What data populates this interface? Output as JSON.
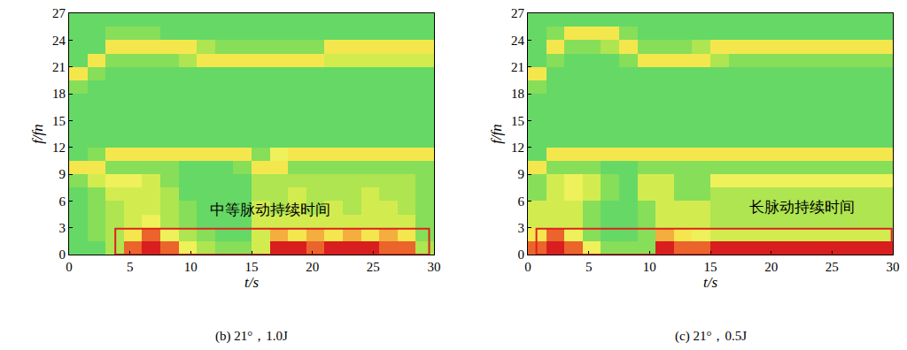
{
  "chart_data": [
    {
      "type": "heatmap",
      "title": "(b) 21°，1.0J",
      "x_label": "t/s",
      "y_label": "f/fn",
      "xlim": [
        0,
        30
      ],
      "ylim": [
        0,
        27
      ],
      "xticks": [
        0,
        5,
        10,
        15,
        20,
        25,
        30
      ],
      "yticks": [
        0,
        3,
        6,
        9,
        12,
        15,
        18,
        21,
        24,
        27
      ],
      "zlim": [
        0,
        9
      ],
      "x": [
        0.75,
        2.25,
        3.75,
        5.25,
        6.75,
        8.25,
        9.75,
        11.25,
        12.75,
        14.25,
        15.75,
        17.25,
        18.75,
        20.25,
        21.75,
        23.25,
        24.75,
        26.25,
        27.75,
        29.25
      ],
      "y": [
        0.75,
        2.25,
        3.75,
        5.25,
        6.75,
        8.25,
        9.75,
        11.25,
        12.75,
        14.25,
        15.75,
        17.25,
        18.75,
        20.25,
        21.75,
        23.25,
        24.75,
        26.25
      ],
      "z": [
        [
          1,
          1,
          3,
          8,
          9,
          8,
          5,
          3,
          2,
          2,
          4,
          9,
          9,
          8,
          9,
          9,
          9,
          8,
          8,
          3
        ],
        [
          1,
          2,
          3,
          6,
          8,
          5,
          3,
          2,
          1,
          1,
          4,
          7,
          6,
          7,
          6,
          7,
          6,
          7,
          6,
          2
        ],
        [
          1,
          2,
          3,
          4,
          5,
          3,
          2,
          1,
          1,
          1,
          4,
          4,
          4,
          4,
          4,
          4,
          4,
          4,
          4,
          2
        ],
        [
          1,
          2,
          3,
          4,
          4,
          3,
          2,
          1,
          1,
          1,
          4,
          3,
          4,
          3,
          4,
          3,
          4,
          4,
          3,
          2
        ],
        [
          1,
          2,
          4,
          4,
          4,
          3,
          1,
          1,
          1,
          1,
          3,
          3,
          4,
          3,
          3,
          3,
          4,
          3,
          3,
          2
        ],
        [
          2,
          4,
          5,
          5,
          4,
          2,
          1,
          1,
          1,
          1,
          3,
          3,
          3,
          3,
          3,
          3,
          3,
          3,
          3,
          2
        ],
        [
          6,
          6,
          2,
          2,
          2,
          2,
          1,
          1,
          1,
          2,
          6,
          6,
          2,
          2,
          2,
          2,
          2,
          2,
          2,
          2
        ],
        [
          1,
          2,
          6,
          6,
          6,
          6,
          6,
          6,
          6,
          6,
          2,
          5,
          6,
          6,
          6,
          6,
          6,
          6,
          6,
          6
        ],
        [
          1,
          1,
          1,
          1,
          1,
          1,
          1,
          1,
          1,
          1,
          1,
          1,
          1,
          1,
          1,
          1,
          1,
          1,
          1,
          1
        ],
        [
          1,
          1,
          1,
          1,
          1,
          1,
          1,
          1,
          1,
          1,
          1,
          1,
          1,
          1,
          1,
          1,
          1,
          1,
          1,
          1
        ],
        [
          1,
          1,
          1,
          1,
          1,
          1,
          1,
          1,
          1,
          1,
          1,
          1,
          1,
          1,
          1,
          1,
          1,
          1,
          1,
          1
        ],
        [
          1,
          1,
          1,
          1,
          1,
          1,
          1,
          1,
          1,
          1,
          1,
          1,
          1,
          1,
          1,
          1,
          1,
          1,
          1,
          1
        ],
        [
          2,
          1,
          1,
          1,
          1,
          1,
          1,
          1,
          1,
          1,
          1,
          1,
          1,
          1,
          1,
          1,
          1,
          1,
          1,
          1
        ],
        [
          6,
          2,
          1,
          1,
          1,
          1,
          1,
          1,
          1,
          1,
          1,
          1,
          1,
          1,
          1,
          1,
          1,
          1,
          1,
          1
        ],
        [
          1,
          6,
          2,
          2,
          2,
          2,
          3,
          6,
          6,
          6,
          6,
          6,
          6,
          6,
          4,
          4,
          4,
          4,
          4,
          4
        ],
        [
          1,
          1,
          6,
          6,
          6,
          6,
          6,
          3,
          2,
          2,
          2,
          2,
          2,
          2,
          6,
          6,
          6,
          6,
          6,
          6
        ],
        [
          1,
          1,
          2,
          2,
          2,
          1,
          1,
          1,
          1,
          1,
          1,
          1,
          1,
          1,
          1,
          1,
          1,
          1,
          1,
          1
        ],
        [
          1,
          1,
          1,
          1,
          1,
          1,
          1,
          1,
          1,
          1,
          1,
          1,
          1,
          1,
          1,
          1,
          1,
          1,
          1,
          1
        ]
      ],
      "annotation": {
        "text": "中等脉动持续时间",
        "x": 16.5,
        "y": 5
      },
      "box": {
        "x": [
          3.8,
          29.6
        ],
        "y": [
          0,
          2.9
        ],
        "color": "#e02020"
      }
    },
    {
      "type": "heatmap",
      "title": "(c) 21°，0.5J",
      "x_label": "t/s",
      "y_label": "f/fn",
      "xlim": [
        0,
        30
      ],
      "ylim": [
        0,
        27
      ],
      "xticks": [
        0,
        5,
        10,
        15,
        20,
        25,
        30
      ],
      "yticks": [
        0,
        3,
        6,
        9,
        12,
        15,
        18,
        21,
        24,
        27
      ],
      "zlim": [
        0,
        9
      ],
      "x": [
        0.75,
        2.25,
        3.75,
        5.25,
        6.75,
        8.25,
        9.75,
        11.25,
        12.75,
        14.25,
        15.75,
        17.25,
        18.75,
        20.25,
        21.75,
        23.25,
        24.75,
        26.25,
        27.75,
        29.25
      ],
      "y": [
        0.75,
        2.25,
        3.75,
        5.25,
        6.75,
        8.25,
        9.75,
        11.25,
        12.75,
        14.25,
        15.75,
        17.25,
        18.75,
        20.25,
        21.75,
        23.25,
        24.75,
        26.25
      ],
      "z": [
        [
          8,
          9,
          8,
          5,
          2,
          2,
          2,
          9,
          8,
          8,
          9,
          9,
          9,
          9,
          9,
          9,
          9,
          9,
          9,
          9
        ],
        [
          6,
          8,
          5,
          2,
          1,
          1,
          2,
          7,
          6,
          5,
          4,
          4,
          4,
          4,
          4,
          4,
          4,
          4,
          4,
          4
        ],
        [
          4,
          4,
          4,
          2,
          1,
          1,
          2,
          4,
          4,
          4,
          3,
          3,
          3,
          3,
          3,
          3,
          3,
          3,
          3,
          3
        ],
        [
          4,
          4,
          4,
          2,
          1,
          1,
          2,
          4,
          4,
          4,
          3,
          3,
          3,
          3,
          3,
          3,
          3,
          3,
          3,
          3
        ],
        [
          2,
          4,
          5,
          4,
          2,
          1,
          4,
          4,
          2,
          2,
          3,
          3,
          3,
          3,
          3,
          3,
          3,
          3,
          3,
          3
        ],
        [
          2,
          4,
          5,
          4,
          2,
          1,
          4,
          4,
          2,
          2,
          5,
          5,
          5,
          5,
          5,
          5,
          5,
          5,
          5,
          5
        ],
        [
          6,
          2,
          2,
          2,
          1,
          1,
          2,
          2,
          2,
          2,
          2,
          2,
          2,
          2,
          2,
          2,
          2,
          2,
          2,
          2
        ],
        [
          1,
          6,
          6,
          6,
          6,
          6,
          6,
          6,
          6,
          6,
          6,
          6,
          6,
          6,
          6,
          6,
          6,
          6,
          6,
          6
        ],
        [
          1,
          1,
          1,
          1,
          1,
          1,
          1,
          1,
          1,
          1,
          1,
          1,
          1,
          1,
          1,
          1,
          1,
          1,
          1,
          1
        ],
        [
          1,
          1,
          1,
          1,
          1,
          1,
          1,
          1,
          1,
          1,
          1,
          1,
          1,
          1,
          1,
          1,
          1,
          1,
          1,
          1
        ],
        [
          1,
          1,
          1,
          1,
          1,
          1,
          1,
          1,
          1,
          1,
          1,
          1,
          1,
          1,
          1,
          1,
          1,
          1,
          1,
          1
        ],
        [
          1,
          1,
          1,
          1,
          1,
          1,
          1,
          1,
          1,
          1,
          1,
          1,
          1,
          1,
          1,
          1,
          1,
          1,
          1,
          1
        ],
        [
          2,
          1,
          1,
          1,
          1,
          1,
          1,
          1,
          1,
          1,
          1,
          1,
          1,
          1,
          1,
          1,
          1,
          1,
          1,
          1
        ],
        [
          6,
          1,
          1,
          1,
          1,
          1,
          1,
          1,
          1,
          1,
          1,
          1,
          1,
          1,
          1,
          1,
          1,
          1,
          1,
          1
        ],
        [
          1,
          2,
          1,
          1,
          1,
          2,
          6,
          6,
          6,
          6,
          3,
          2,
          2,
          2,
          2,
          2,
          2,
          2,
          2,
          2
        ],
        [
          1,
          6,
          2,
          2,
          3,
          6,
          2,
          2,
          2,
          3,
          6,
          6,
          6,
          6,
          6,
          6,
          6,
          6,
          6,
          6
        ],
        [
          1,
          2,
          6,
          6,
          6,
          2,
          1,
          1,
          1,
          1,
          1,
          1,
          1,
          1,
          1,
          1,
          1,
          1,
          1,
          1
        ],
        [
          1,
          1,
          1,
          1,
          1,
          1,
          1,
          1,
          1,
          1,
          1,
          1,
          1,
          1,
          1,
          1,
          1,
          1,
          1,
          1
        ]
      ],
      "annotation": {
        "text": "长脉动持续时间",
        "x": 22.5,
        "y": 5.3
      },
      "box": {
        "x": [
          0.7,
          29.9
        ],
        "y": [
          0,
          2.9
        ],
        "color": "#e02020"
      }
    }
  ]
}
